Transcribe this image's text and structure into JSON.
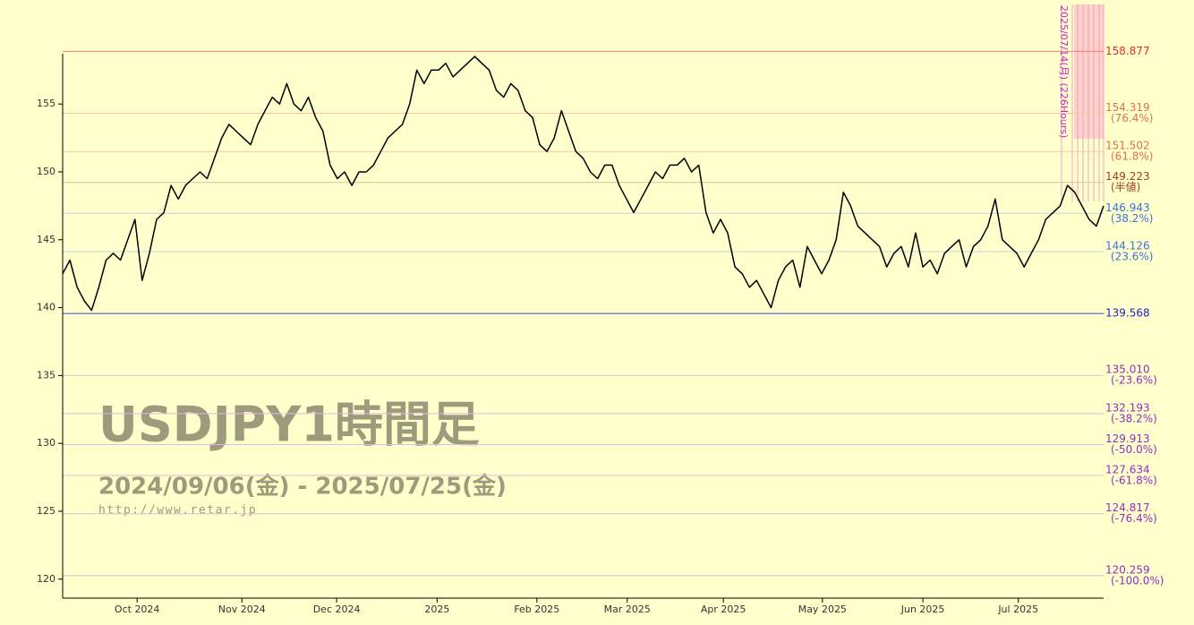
{
  "chart_data": {
    "type": "line",
    "watermark": {
      "title": "USDJPY1時間足",
      "period": "2024/09/06(金) - 2025/07/25(金)",
      "url": "http://www.retar.jp"
    },
    "event_label": "2025/07/14(月) (226Hours)",
    "series": [
      {
        "color": "#000000",
        "values": [
          142.5,
          143.5,
          141.5,
          140.5,
          139.8,
          141.5,
          143.5,
          144,
          143.5,
          145,
          146.5,
          142,
          144,
          146.5,
          147,
          149,
          148,
          149,
          149.5,
          150,
          149.5,
          151,
          152.5,
          153.5,
          153,
          152.5,
          152,
          153.5,
          154.5,
          155.5,
          155,
          156.5,
          155,
          154.5,
          155.5,
          154,
          153,
          150.5,
          149.5,
          150,
          149,
          150,
          150,
          150.5,
          151.5,
          152.5,
          153,
          153.5,
          155,
          157.5,
          156.5,
          157.5,
          157.5,
          158,
          157,
          157.5,
          158,
          158.5,
          158,
          157.5,
          156,
          155.5,
          156.5,
          156,
          154.5,
          154,
          152,
          151.5,
          152.5,
          154.5,
          153,
          151.5,
          151,
          150,
          149.5,
          150.5,
          150.5,
          149,
          148,
          147,
          148,
          149,
          150,
          149.5,
          150.5,
          150.5,
          151,
          150,
          150.5,
          147,
          145.5,
          146.5,
          145.5,
          143,
          142.5,
          141.5,
          142,
          141,
          140,
          142,
          143,
          143.5,
          141.5,
          144.5,
          143.5,
          142.5,
          143.5,
          145,
          148.5,
          147.5,
          146,
          145.5,
          145,
          144.5,
          143,
          144,
          144.5,
          143,
          145.5,
          143,
          143.5,
          142.5,
          144,
          144.5,
          145,
          143,
          144.5,
          145,
          146,
          148,
          145,
          144.5,
          144,
          143,
          144,
          145,
          146.5,
          147,
          147.5,
          149,
          148.5,
          147.5,
          146.5,
          146,
          147.5
        ]
      }
    ],
    "xlim": [
      0,
      144
    ],
    "xticks": [
      {
        "value": 10.3,
        "label": "Oct 2024"
      },
      {
        "value": 24.8,
        "label": "Nov 2024"
      },
      {
        "value": 37.9,
        "label": "Dec 2024"
      },
      {
        "value": 51.8,
        "label": "2025"
      },
      {
        "value": 65.6,
        "label": "Feb 2025"
      },
      {
        "value": 78.1,
        "label": "Mar 2025"
      },
      {
        "value": 91.4,
        "label": "Apr 2025"
      },
      {
        "value": 105.1,
        "label": "May 2025"
      },
      {
        "value": 119.0,
        "label": "Jun 2025"
      },
      {
        "value": 132.2,
        "label": "Jul 2025"
      }
    ],
    "ylim": [
      118.6,
      159.1
    ],
    "yticks": [
      120,
      125,
      130,
      135,
      140,
      145,
      150,
      155
    ],
    "levels": [
      {
        "value": 158.877,
        "label": "158.877",
        "color": "#e03030",
        "line": "#f08080"
      },
      {
        "value": 154.319,
        "label": "154.319",
        "note": "(76.4%)",
        "color": "#e07050",
        "line": "#f0c8b0"
      },
      {
        "value": 151.502,
        "label": "151.502",
        "note": "(61.8%)",
        "color": "#e07050",
        "line": "#f0c8b0"
      },
      {
        "value": 149.223,
        "label": "149.223",
        "note": "(半値)",
        "color": "#a04020",
        "line": "#e0c0a0"
      },
      {
        "value": 146.943,
        "label": "146.943",
        "note": "(38.2%)",
        "color": "#4070e0",
        "line": "#c8d0e0"
      },
      {
        "value": 144.126,
        "label": "144.126",
        "note": "(23.6%)",
        "color": "#4070e0",
        "line": "#c8d0e0"
      },
      {
        "value": 139.568,
        "label": "139.568",
        "color": "#2020d0",
        "line": "#4040e0"
      },
      {
        "value": 135.01,
        "label": "135.010",
        "note": "(-23.6%)",
        "color": "#9030c0",
        "line": "#e0b8e0"
      },
      {
        "value": 132.193,
        "label": "132.193",
        "note": "(-38.2%)",
        "color": "#9030c0",
        "line": "#e0b8e0"
      },
      {
        "value": 129.913,
        "label": "129.913",
        "note": "(-50.0%)",
        "color": "#9030c0",
        "line": "#e0b8e0"
      },
      {
        "value": 127.634,
        "label": "127.634",
        "note": "(-61.8%)",
        "color": "#9030c0",
        "line": "#e0b8e0"
      },
      {
        "value": 124.817,
        "label": "124.817",
        "note": "(-76.4%)",
        "color": "#9030c0",
        "line": "#e0b8e0"
      },
      {
        "value": 120.259,
        "label": "120.259",
        "note": "(-100.0%)",
        "color": "#9030c0",
        "line": "#e0b8e0"
      }
    ]
  }
}
